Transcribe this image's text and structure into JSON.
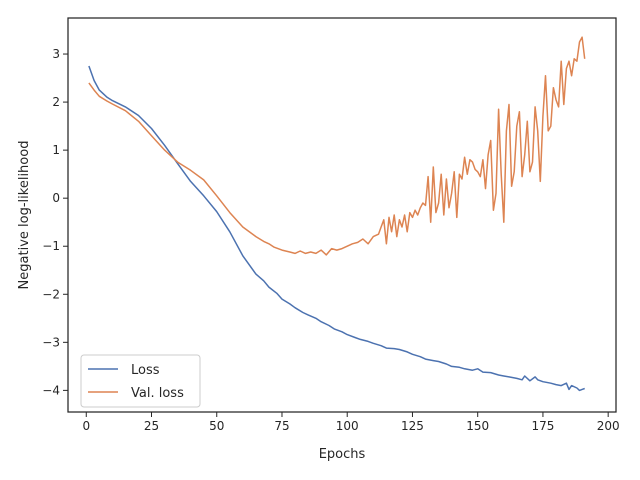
{
  "chart_data": {
    "type": "line",
    "xlabel": "Epochs",
    "ylabel": "Negative log-likelihood",
    "xlim": [
      -7,
      203
    ],
    "ylim": [
      -4.45,
      3.75
    ],
    "xticks": [
      0,
      25,
      50,
      75,
      100,
      125,
      150,
      175,
      200
    ],
    "yticks": [
      -4,
      -3,
      -2,
      -1,
      0,
      1,
      2,
      3
    ],
    "ytick_labels": [
      "−4",
      "−3",
      "−2",
      "−1",
      "0",
      "1",
      "2",
      "3"
    ],
    "grid": false,
    "legend_position": "lower-left",
    "series": [
      {
        "name": "Loss",
        "color": "#4c72b0",
        "x": [
          1,
          3,
          5,
          8,
          10,
          15,
          20,
          25,
          30,
          35,
          40,
          45,
          50,
          55,
          60,
          65,
          68,
          70,
          73,
          75,
          78,
          80,
          83,
          85,
          88,
          90,
          93,
          95,
          98,
          100,
          103,
          105,
          108,
          110,
          113,
          115,
          118,
          120,
          123,
          125,
          128,
          130,
          133,
          135,
          138,
          140,
          143,
          145,
          148,
          150,
          152,
          155,
          158,
          160,
          162,
          165,
          167,
          168,
          170,
          172,
          173,
          175,
          178,
          180,
          182,
          184,
          185,
          186,
          188,
          189,
          190,
          191
        ],
        "values": [
          2.75,
          2.45,
          2.25,
          2.1,
          2.03,
          1.9,
          1.72,
          1.45,
          1.1,
          0.72,
          0.35,
          0.05,
          -0.28,
          -0.7,
          -1.2,
          -1.58,
          -1.72,
          -1.85,
          -1.98,
          -2.1,
          -2.2,
          -2.28,
          -2.38,
          -2.43,
          -2.5,
          -2.57,
          -2.65,
          -2.72,
          -2.78,
          -2.84,
          -2.9,
          -2.94,
          -2.98,
          -3.02,
          -3.07,
          -3.12,
          -3.13,
          -3.15,
          -3.2,
          -3.25,
          -3.3,
          -3.35,
          -3.38,
          -3.4,
          -3.45,
          -3.5,
          -3.52,
          -3.55,
          -3.58,
          -3.55,
          -3.62,
          -3.63,
          -3.68,
          -3.7,
          -3.72,
          -3.75,
          -3.78,
          -3.7,
          -3.8,
          -3.72,
          -3.78,
          -3.82,
          -3.85,
          -3.88,
          -3.9,
          -3.85,
          -3.98,
          -3.9,
          -3.95,
          -4.0,
          -3.98,
          -3.96
        ]
      },
      {
        "name": "Val. loss",
        "color": "#dd8452",
        "x": [
          1,
          3,
          5,
          8,
          10,
          15,
          20,
          25,
          30,
          35,
          40,
          45,
          50,
          55,
          60,
          65,
          68,
          70,
          72,
          75,
          78,
          80,
          82,
          84,
          86,
          88,
          90,
          92,
          94,
          96,
          98,
          100,
          102,
          104,
          106,
          108,
          110,
          112,
          113,
          114,
          115,
          116,
          117,
          118,
          119,
          120,
          121,
          122,
          123,
          124,
          125,
          126,
          127,
          128,
          129,
          130,
          131,
          132,
          133,
          134,
          135,
          136,
          137,
          138,
          139,
          140,
          141,
          142,
          143,
          144,
          145,
          146,
          147,
          148,
          149,
          150,
          151,
          152,
          153,
          154,
          155,
          156,
          157,
          158,
          159,
          160,
          161,
          162,
          163,
          164,
          165,
          166,
          167,
          168,
          169,
          170,
          171,
          172,
          173,
          174,
          175,
          176,
          177,
          178,
          179,
          180,
          181,
          182,
          183,
          184,
          185,
          186,
          187,
          188,
          189,
          190,
          191
        ],
        "values": [
          2.4,
          2.25,
          2.12,
          2.02,
          1.96,
          1.82,
          1.6,
          1.3,
          1.0,
          0.75,
          0.58,
          0.38,
          0.05,
          -0.3,
          -0.6,
          -0.8,
          -0.9,
          -0.95,
          -1.02,
          -1.08,
          -1.12,
          -1.15,
          -1.1,
          -1.15,
          -1.12,
          -1.15,
          -1.08,
          -1.18,
          -1.05,
          -1.08,
          -1.05,
          -1.0,
          -0.95,
          -0.92,
          -0.85,
          -0.95,
          -0.8,
          -0.75,
          -0.6,
          -0.45,
          -0.95,
          -0.4,
          -0.7,
          -0.35,
          -0.8,
          -0.45,
          -0.6,
          -0.35,
          -0.7,
          -0.3,
          -0.4,
          -0.25,
          -0.35,
          -0.2,
          -0.1,
          -0.15,
          0.45,
          -0.5,
          0.65,
          -0.3,
          -0.1,
          0.5,
          -0.35,
          0.4,
          -0.2,
          0.1,
          0.55,
          -0.4,
          0.5,
          0.4,
          0.85,
          0.5,
          0.8,
          0.75,
          0.6,
          0.55,
          0.45,
          0.8,
          0.2,
          0.9,
          1.2,
          -0.25,
          0.1,
          1.85,
          0.5,
          -0.5,
          1.4,
          1.95,
          0.25,
          0.55,
          1.5,
          1.8,
          0.45,
          0.9,
          1.6,
          0.55,
          0.75,
          1.9,
          1.4,
          0.35,
          1.7,
          2.55,
          1.4,
          1.5,
          2.3,
          2.05,
          1.9,
          2.85,
          1.95,
          2.7,
          2.85,
          2.55,
          2.9,
          2.85,
          3.25,
          3.35,
          2.9
        ]
      }
    ]
  }
}
